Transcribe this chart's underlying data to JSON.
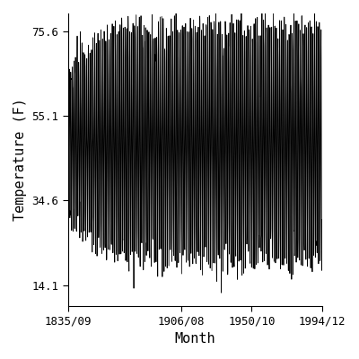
{
  "title": "",
  "xlabel": "Month",
  "ylabel": "Temperature (F)",
  "ylim": [
    9.0,
    80.0
  ],
  "yticks": [
    14.1,
    34.6,
    55.1,
    75.6
  ],
  "xtick_labels": [
    "1835/09",
    "1906/08",
    "1950/10",
    "1994/12"
  ],
  "line_color": "#000000",
  "line_width": 0.6,
  "background_color": "#ffffff",
  "font_family": "monospace",
  "start_year": 1835,
  "start_month": 9,
  "end_year": 1994,
  "end_month": 12,
  "mean_temp": 48.5,
  "base_amplitude": 18.0,
  "full_amplitude": 28.0,
  "buildup_years": 30,
  "noise_std": 2.5
}
